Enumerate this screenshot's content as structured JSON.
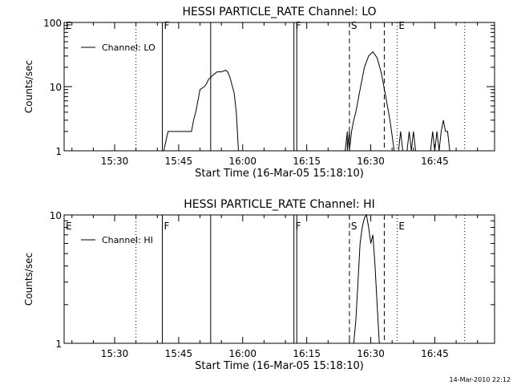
{
  "chart_data": [
    {
      "type": "line",
      "title": "HESSI PARTICLE_RATE Channel: LO",
      "xlabel": "Start Time (16-Mar-05 15:18:10)",
      "ylabel": "Counts/sec",
      "yscale": "log",
      "xlim": [
        "15:18:10",
        "16:59:00"
      ],
      "ylim": [
        1,
        100
      ],
      "xticks": [
        "15:30",
        "15:45",
        "16:00",
        "16:15",
        "16:30",
        "16:45"
      ],
      "yticks": [
        "1",
        "10",
        "100"
      ],
      "legend": {
        "label": "Channel: LO",
        "position": "top-left"
      },
      "grid": false,
      "series": [
        {
          "name": "Channel: LO",
          "color": "#000000",
          "x": [
            "15:41:30",
            "15:42:30",
            "15:43:00",
            "15:44:00",
            "15:46:00",
            "15:48:00",
            "15:48:30",
            "15:49:00",
            "15:49:30",
            "15:50:00",
            "15:51:00",
            "15:51:30",
            "15:52:00",
            "15:53:00",
            "15:53:30",
            "15:54:00",
            "15:55:00",
            "15:56:00",
            "15:56:30",
            "15:57:00",
            "15:58:00",
            "15:58:30",
            "15:59:00",
            "16:24:00",
            "16:24:30",
            "16:24:30",
            "16:25:00",
            "16:25:00",
            "16:25:30",
            "16:26:00",
            "16:26:00",
            "16:26:30",
            "16:27:30",
            "16:28:30",
            "16:29:30",
            "16:30:30",
            "16:31:30",
            "16:32:30",
            "16:33:30",
            "16:34:30",
            "16:35:30",
            "16:36:30",
            "16:37:00",
            "16:37:30",
            "16:38:00",
            "16:38:30",
            "16:39:00",
            "16:39:30",
            "16:40:00",
            "16:40:30",
            "16:44:00",
            "16:44:30",
            "16:45:00",
            "16:45:30",
            "16:46:00",
            "16:46:30",
            "16:47:00",
            "16:47:30",
            "16:48:00",
            "16:48:30"
          ],
          "y": [
            1,
            2,
            2,
            2,
            2,
            2,
            3,
            4,
            6,
            9,
            10,
            11,
            13,
            15,
            16,
            17,
            17,
            18,
            17,
            14,
            8,
            4,
            1,
            1,
            2,
            1,
            2,
            1,
            2,
            3,
            3,
            4,
            9,
            20,
            30,
            35,
            28,
            16,
            7,
            3,
            1,
            1,
            2,
            1,
            1,
            1,
            2,
            1,
            2,
            1,
            1,
            2,
            1,
            2,
            1,
            2,
            3,
            2,
            2,
            1
          ]
        }
      ],
      "annotations": [
        {
          "label": "E",
          "x": "15:18:10",
          "style": "dotted"
        },
        {
          "label": "",
          "x": "15:35:00",
          "style": "dotted"
        },
        {
          "label": "F",
          "x": "15:41:10",
          "style": "solid"
        },
        {
          "label": "",
          "x": "15:52:30",
          "style": "solid"
        },
        {
          "label": "F",
          "x": "16:12:00",
          "style": "solid"
        },
        {
          "label": "",
          "x": "16:12:40",
          "style": "solid"
        },
        {
          "label": "S",
          "x": "16:25:00",
          "style": "dashed"
        },
        {
          "label": "",
          "x": "16:33:10",
          "style": "dashed"
        },
        {
          "label": "E",
          "x": "16:36:10",
          "style": "dotted"
        },
        {
          "label": "",
          "x": "16:52:00",
          "style": "dotted"
        }
      ]
    },
    {
      "type": "line",
      "title": "HESSI PARTICLE_RATE Channel: HI",
      "xlabel": "Start Time (16-Mar-05 15:18:10)",
      "ylabel": "Counts/sec",
      "yscale": "log",
      "xlim": [
        "15:18:10",
        "16:59:00"
      ],
      "ylim": [
        1,
        10
      ],
      "xticks": [
        "15:30",
        "15:45",
        "16:00",
        "16:15",
        "16:30",
        "16:45"
      ],
      "yticks": [
        "1",
        "10"
      ],
      "legend": {
        "label": "Channel: HI",
        "position": "top-left"
      },
      "grid": false,
      "series": [
        {
          "name": "Channel: HI",
          "color": "#000000",
          "x": [
            "16:26:00",
            "16:26:30",
            "16:27:00",
            "16:27:30",
            "16:28:00",
            "16:28:30",
            "16:29:00",
            "16:29:30",
            "16:30:00",
            "16:30:30",
            "16:31:00",
            "16:31:30",
            "16:32:00"
          ],
          "y": [
            1,
            1.5,
            3,
            6,
            8,
            9.5,
            10,
            8,
            6,
            7,
            4,
            2,
            1
          ]
        }
      ],
      "annotations": [
        {
          "label": "E",
          "x": "15:18:10",
          "style": "dotted"
        },
        {
          "label": "",
          "x": "15:35:00",
          "style": "dotted"
        },
        {
          "label": "F",
          "x": "15:41:10",
          "style": "solid"
        },
        {
          "label": "",
          "x": "15:52:30",
          "style": "solid"
        },
        {
          "label": "F",
          "x": "16:12:00",
          "style": "solid"
        },
        {
          "label": "",
          "x": "16:12:40",
          "style": "solid"
        },
        {
          "label": "S",
          "x": "16:25:00",
          "style": "dashed"
        },
        {
          "label": "",
          "x": "16:33:10",
          "style": "dashed"
        },
        {
          "label": "E",
          "x": "16:36:10",
          "style": "dotted"
        },
        {
          "label": "",
          "x": "16:52:00",
          "style": "dotted"
        }
      ]
    }
  ],
  "footer": {
    "timestamp": "14-Mar-2010 22:12"
  }
}
